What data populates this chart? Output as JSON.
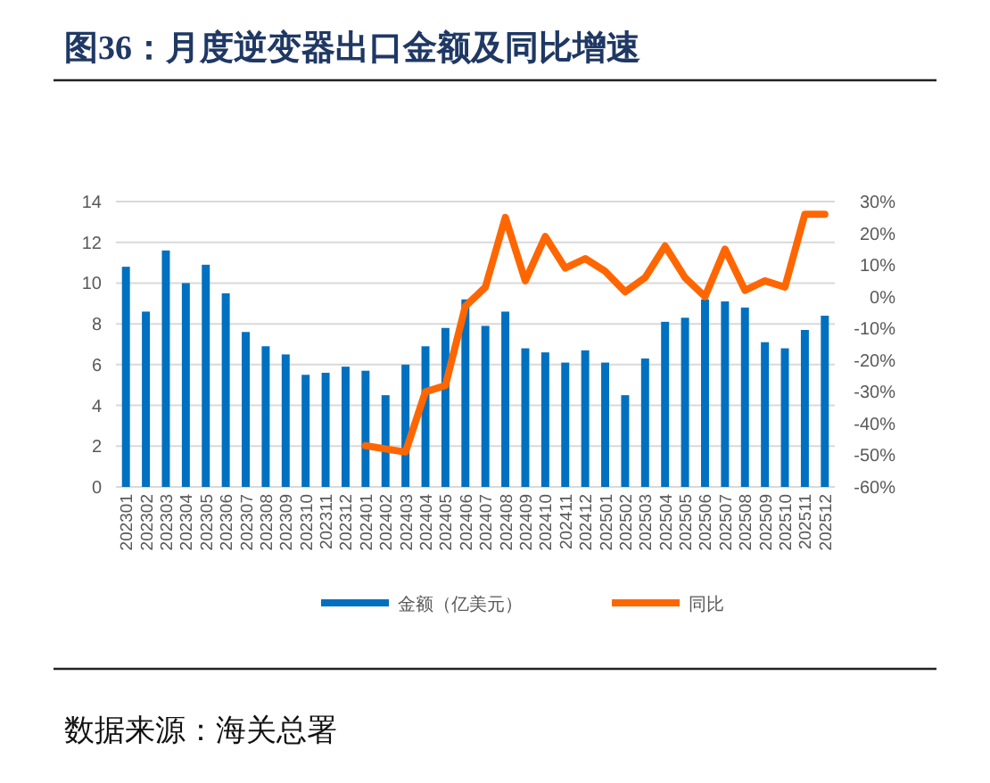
{
  "chart_data": {
    "type": "bar",
    "title": "图36：月度逆变器出口金额及同比增速",
    "categories": [
      "202301",
      "202302",
      "202303",
      "202304",
      "202305",
      "202306",
      "202307",
      "202308",
      "202309",
      "202310",
      "202311",
      "202312",
      "202401",
      "202402",
      "202403",
      "202404",
      "202405",
      "202406",
      "202407",
      "202408",
      "202409",
      "202410",
      "202411",
      "202412",
      "202501",
      "202502",
      "202503",
      "202504",
      "202505",
      "202506",
      "202507",
      "202508",
      "202509",
      "202510",
      "202511",
      "202512"
    ],
    "series": [
      {
        "name": "金额（亿美元）",
        "color": "#0070c0",
        "values": [
          10.8,
          8.6,
          11.6,
          10.0,
          10.9,
          9.5,
          7.6,
          6.9,
          6.5,
          5.5,
          5.6,
          5.9,
          5.7,
          4.5,
          6.0,
          6.9,
          7.8,
          9.2,
          7.9,
          8.6,
          6.8,
          6.6,
          6.1,
          6.7,
          6.1,
          4.5,
          6.3,
          8.1,
          8.3,
          9.2,
          9.1,
          8.8,
          7.1,
          6.8,
          7.7,
          8.4
        ]
      },
      {
        "name": "同比",
        "type": "line",
        "axis": "y2",
        "color": "#ff6600",
        "values": [
          null,
          null,
          null,
          null,
          null,
          null,
          null,
          null,
          null,
          null,
          null,
          null,
          -47,
          -48,
          -49,
          -30,
          -28,
          -3,
          3,
          25,
          5,
          19,
          9,
          12,
          8,
          1.5,
          6,
          16,
          6,
          0,
          15,
          2,
          5,
          3,
          26,
          26
        ]
      }
    ],
    "ylim": [
      0,
      14
    ],
    "yticks": [
      0,
      2,
      4,
      6,
      8,
      10,
      12,
      14
    ],
    "y2lim": [
      -60,
      30
    ],
    "y2ticks": [
      {
        "value": -60,
        "label": "-60%"
      },
      {
        "value": -50,
        "label": "-50%"
      },
      {
        "value": -40,
        "label": "-40%"
      },
      {
        "value": -30,
        "label": "-30%"
      },
      {
        "value": -20,
        "label": "-20%"
      },
      {
        "value": -10,
        "label": "-10%"
      },
      {
        "value": 0,
        "label": "0%"
      },
      {
        "value": 10,
        "label": "10%"
      },
      {
        "value": 20,
        "label": "20%"
      },
      {
        "value": 30,
        "label": "30%"
      }
    ],
    "grid": "y",
    "legend": "bottom",
    "marker": "none",
    "annotations": [
      "数据来源：海关总署"
    ]
  }
}
